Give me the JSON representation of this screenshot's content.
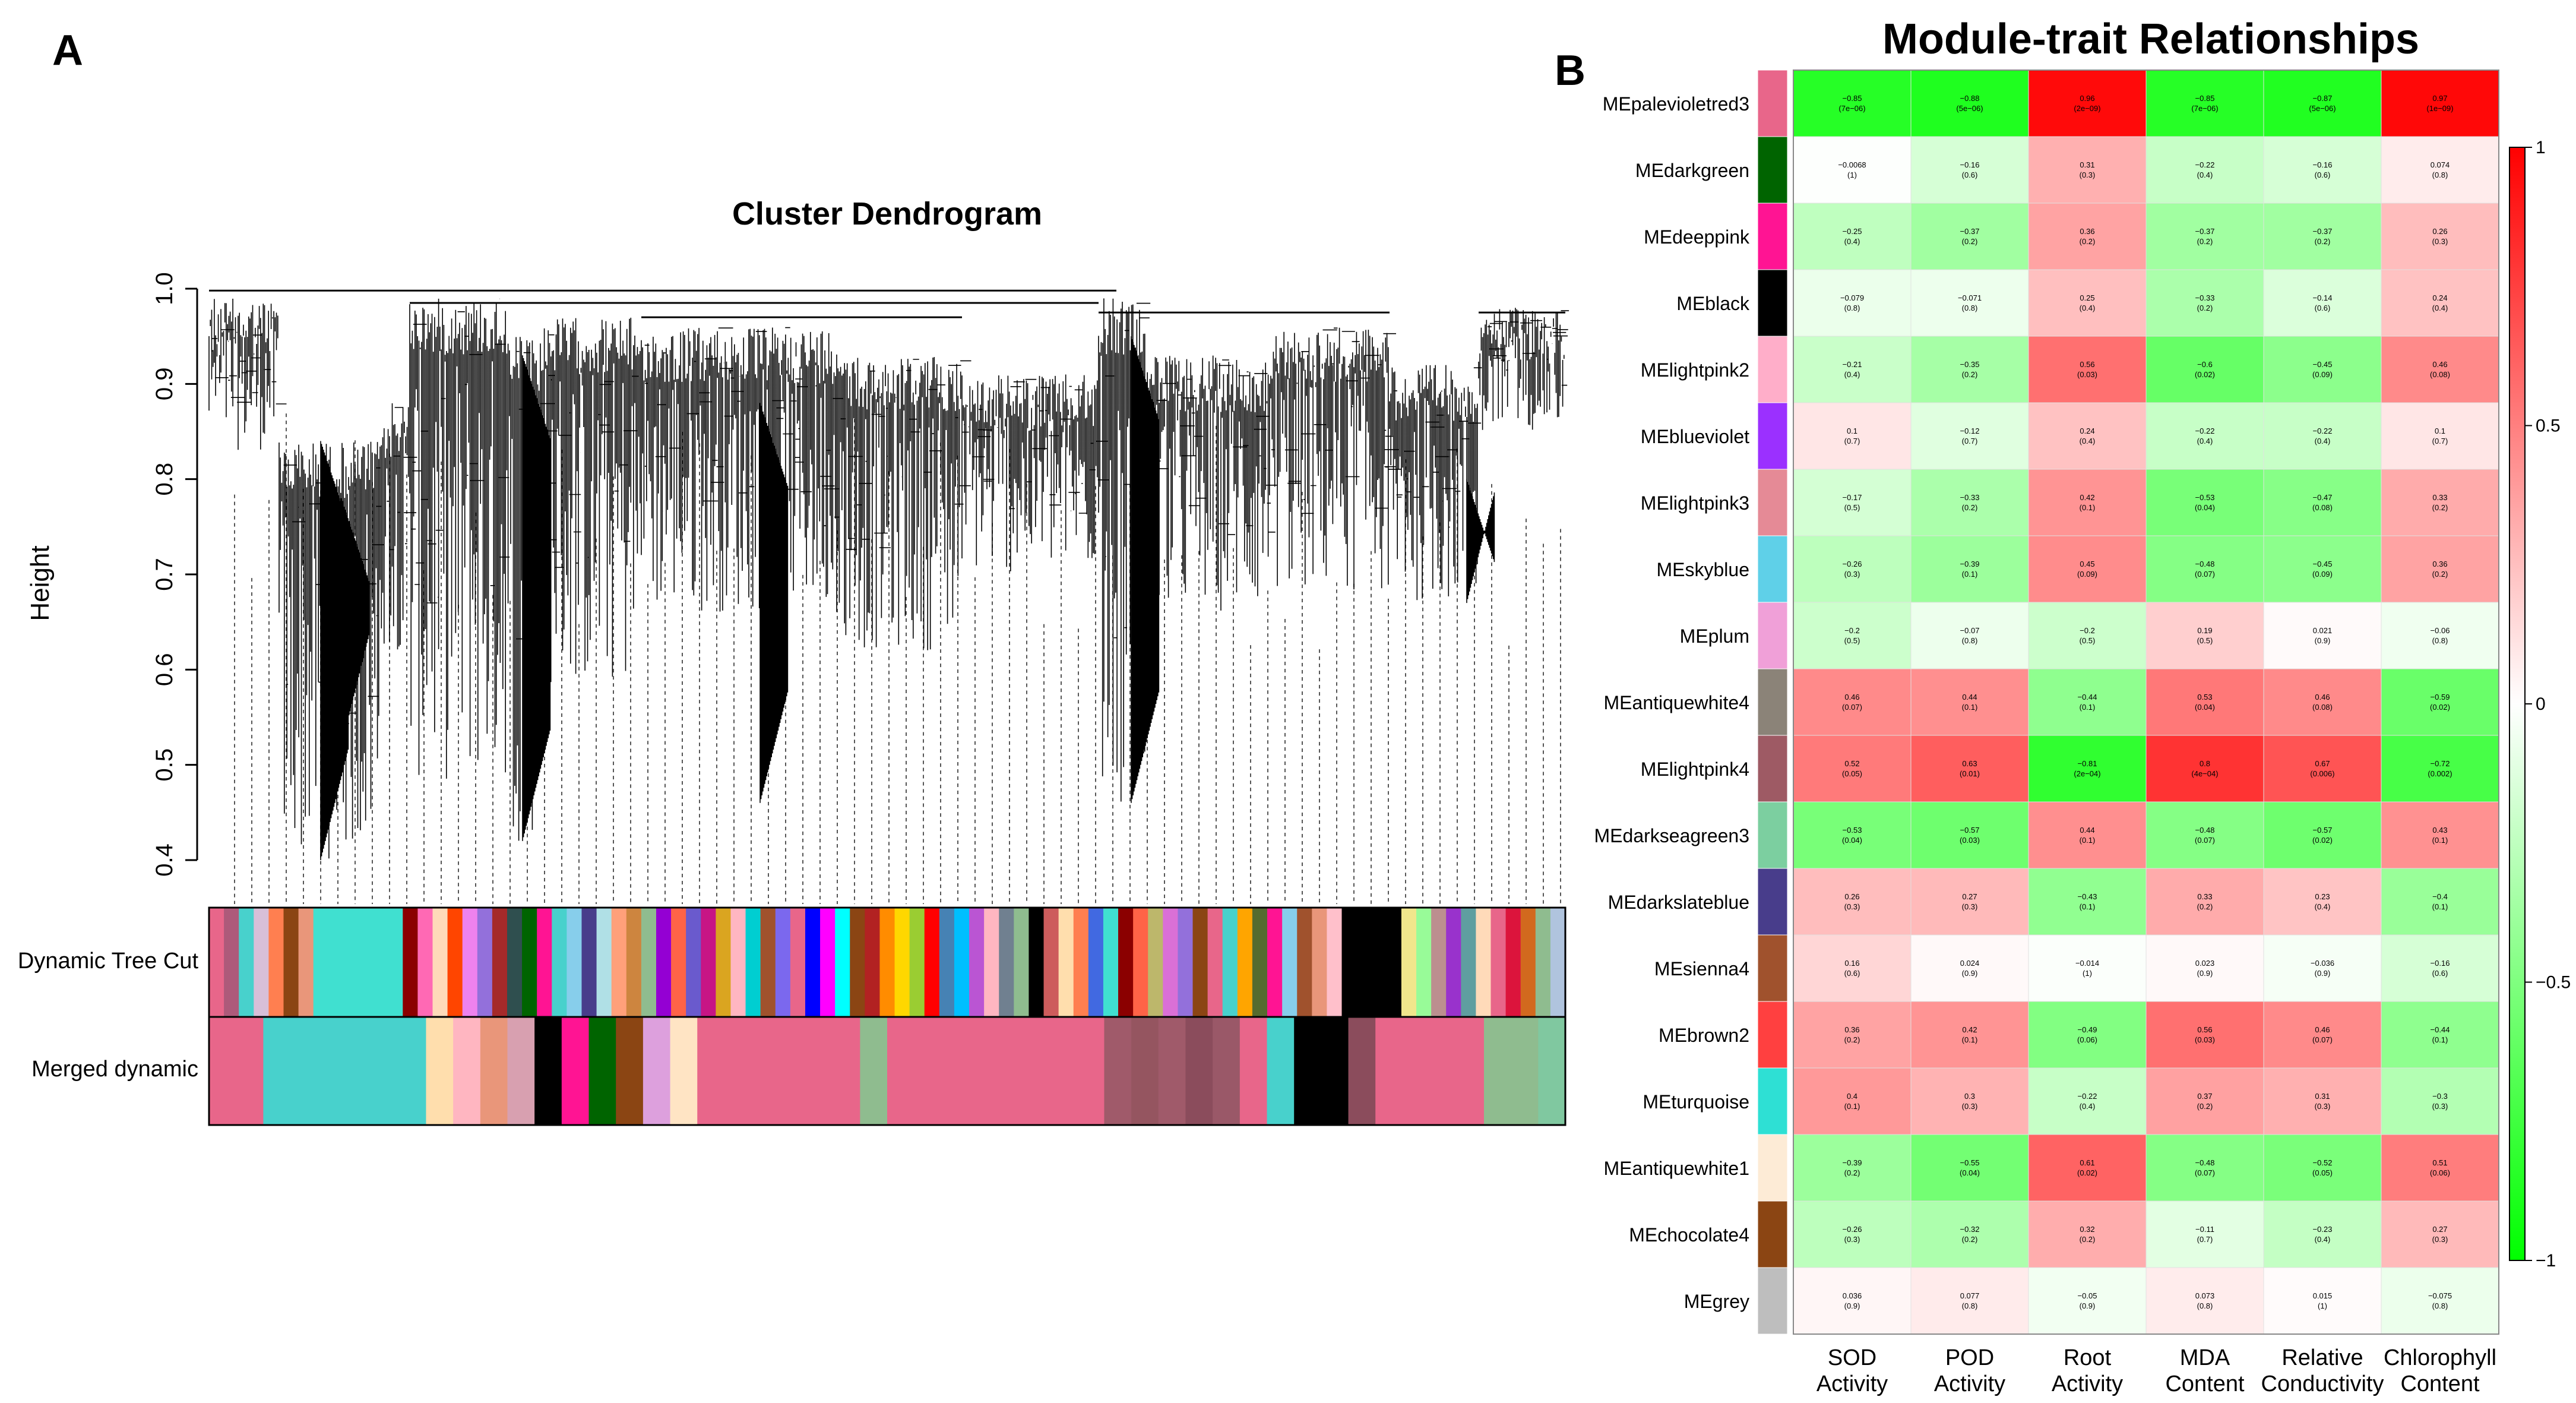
{
  "panel_a_letter": "A",
  "panel_b_letter": "B",
  "chart_data": [
    {
      "type": "dendrogram",
      "title": "Cluster Dendrogram",
      "ylabel": "Height",
      "xlabel": "",
      "ylim": [
        0.4,
        1.0
      ],
      "yticks": [
        0.4,
        0.5,
        0.6,
        0.7,
        0.8,
        0.9,
        1.0
      ],
      "ytick_labels": [
        "0.4",
        "0.5",
        "0.6",
        "0.7",
        "0.8",
        "0.9",
        "1.0"
      ],
      "color_rows": [
        {
          "label": "Dynamic Tree Cut"
        },
        {
          "label": "Merged dynamic"
        }
      ],
      "dynamic_tree_cut_colors": [
        "#e8668a",
        "#ad5a7a",
        "#48d1cc",
        "#d8bfd8",
        "#ff7f50",
        "#8b4513",
        "#e9967a",
        "#40e0d0",
        "#40e0d0",
        "#40e0d0",
        "#40e0d0",
        "#40e0d0",
        "#40e0d0",
        "#8b0000",
        "#ff69b4",
        "#ffdab9",
        "#ff4500",
        "#ee82ee",
        "#9370db",
        "#a52a2a",
        "#2f4f4f",
        "#006400",
        "#ff1493",
        "#48d1cc",
        "#87ceeb",
        "#483d8b",
        "#b0e0e6",
        "#ffa07a",
        "#cd853f",
        "#8fbc8f",
        "#9400d3",
        "#ff6347",
        "#6a5acd",
        "#c71585",
        "#daa520",
        "#ffb6c1",
        "#00ced1",
        "#a0522d",
        "#7b68ee",
        "#e8668a",
        "#0000ff",
        "#ff00ff",
        "#00ffff",
        "#8b4513",
        "#b22222",
        "#ff8c00",
        "#ffd700",
        "#9acd32",
        "#ff0000",
        "#4682b4",
        "#00bfff",
        "#ba55d3",
        "#ffb6c1",
        "#708090",
        "#8fbc8f",
        "#000000",
        "#cd5c5c",
        "#ffdead",
        "#ff7f50",
        "#4169e1",
        "#40e0d0",
        "#8b0000",
        "#ff6347",
        "#bdb76b",
        "#da70d6",
        "#9370db",
        "#8b4513",
        "#e8668a",
        "#48d1cc",
        "#ffa500",
        "#556b2f",
        "#ff1493",
        "#87ceeb",
        "#a0522d",
        "#e9967a",
        "#ffc0cb",
        "#000000",
        "#000000",
        "#000000",
        "#000000",
        "#f0e68c",
        "#98fb98",
        "#bc8f8f",
        "#9932cc",
        "#5f9ea0",
        "#ffdab9",
        "#e8668a",
        "#dc143c",
        "#d2691e",
        "#8fbc8f",
        "#b0c4de"
      ],
      "merged_dynamic_colors": [
        "#e8668a",
        "#e8668a",
        "#48d1cc",
        "#48d1cc",
        "#48d1cc",
        "#48d1cc",
        "#48d1cc",
        "#48d1cc",
        "#ffdead",
        "#ffb6c1",
        "#e9967a",
        "#d8a0b0",
        "#000000",
        "#ff1493",
        "#006400",
        "#8b4513",
        "#dda0dd",
        "#ffe4c4",
        "#e8668a",
        "#e8668a",
        "#e8668a",
        "#e8668a",
        "#e8668a",
        "#e8668a",
        "#8fbc8f",
        "#e8668a",
        "#e8668a",
        "#e8668a",
        "#e8668a",
        "#e8668a",
        "#e8668a",
        "#e8668a",
        "#e8668a",
        "#a05a6a",
        "#955560",
        "#a05a6a",
        "#8b4c5c",
        "#9a5868",
        "#e8668a",
        "#48d1cc",
        "#000000",
        "#000000",
        "#8b4c5c",
        "#e8668a",
        "#e8668a",
        "#e8668a",
        "#e8668a",
        "#8fbc8f",
        "#8fbc8f",
        "#80c8a0"
      ]
    },
    {
      "type": "heatmap",
      "title": "Module-trait Relationships",
      "xlabel": "",
      "ylabel": "",
      "columns": [
        "SOD\nActivity",
        "POD\nActivity",
        "Root\nActivity",
        "MDA\nContent",
        "Relative\nConductivity",
        "Chlorophyll\nContent"
      ],
      "rows": [
        "MEpalevioletred3",
        "MEdarkgreen",
        "MEdeeppink",
        "MEblack",
        "MElightpink2",
        "MEblueviolet",
        "MElightpink3",
        "MEskyblue",
        "MEplum",
        "MEantiquewhite4",
        "MElightpink4",
        "MEdarkseagreen3",
        "MEdarkslateblue",
        "MEsienna4",
        "MEbrown2",
        "MEturquoise",
        "MEantiquewhite1",
        "MEchocolate4",
        "MEgrey"
      ],
      "row_colors": [
        "#e8668a",
        "#006400",
        "#ff1493",
        "#000000",
        "#ffaec9",
        "#9b30ff",
        "#e58a96",
        "#5fd0e8",
        "#f0a0d8",
        "#8b8378",
        "#9e5a64",
        "#7ccfa0",
        "#483d8b",
        "#a0522d",
        "#ff4040",
        "#2ee0d4",
        "#fdebd6",
        "#8b4513",
        "#bebebe"
      ],
      "correlations": [
        [
          -0.85,
          -0.88,
          0.96,
          -0.85,
          -0.87,
          0.97
        ],
        [
          -0.0068,
          -0.16,
          0.31,
          -0.22,
          -0.16,
          0.074
        ],
        [
          -0.25,
          -0.37,
          0.36,
          -0.37,
          -0.37,
          0.26
        ],
        [
          -0.079,
          -0.071,
          0.25,
          -0.33,
          -0.14,
          0.24
        ],
        [
          -0.21,
          -0.35,
          0.56,
          -0.6,
          -0.45,
          0.46
        ],
        [
          0.1,
          -0.12,
          0.24,
          -0.22,
          -0.22,
          0.1
        ],
        [
          -0.17,
          -0.33,
          0.42,
          -0.53,
          -0.47,
          0.33
        ],
        [
          -0.26,
          -0.39,
          0.45,
          -0.48,
          -0.45,
          0.36
        ],
        [
          -0.2,
          -0.07,
          -0.2,
          0.19,
          0.021,
          -0.06
        ],
        [
          0.46,
          0.44,
          -0.44,
          0.53,
          0.46,
          -0.59
        ],
        [
          0.52,
          0.63,
          -0.81,
          0.8,
          0.67,
          -0.72
        ],
        [
          -0.53,
          -0.57,
          0.44,
          -0.48,
          -0.57,
          0.43
        ],
        [
          0.26,
          0.27,
          -0.43,
          0.33,
          0.23,
          -0.4
        ],
        [
          0.16,
          0.024,
          -0.014,
          0.023,
          -0.036,
          -0.16
        ],
        [
          0.36,
          0.42,
          -0.49,
          0.56,
          0.46,
          -0.44
        ],
        [
          0.4,
          0.3,
          -0.22,
          0.37,
          0.31,
          -0.3
        ],
        [
          -0.39,
          -0.55,
          0.61,
          -0.48,
          -0.52,
          0.51
        ],
        [
          -0.26,
          -0.32,
          0.32,
          -0.11,
          -0.23,
          0.27
        ],
        [
          0.036,
          0.077,
          -0.05,
          0.073,
          0.015,
          -0.075
        ]
      ],
      "correlation_labels": [
        [
          "−0.85",
          "−0.88",
          "0.96",
          "−0.85",
          "−0.87",
          "0.97"
        ],
        [
          "−0.0068",
          "−0.16",
          "0.31",
          "−0.22",
          "−0.16",
          "0.074"
        ],
        [
          "−0.25",
          "−0.37",
          "0.36",
          "−0.37",
          "−0.37",
          "0.26"
        ],
        [
          "−0.079",
          "−0.071",
          "0.25",
          "−0.33",
          "−0.14",
          "0.24"
        ],
        [
          "−0.21",
          "−0.35",
          "0.56",
          "−0.6",
          "−0.45",
          "0.46"
        ],
        [
          "0.1",
          "−0.12",
          "0.24",
          "−0.22",
          "−0.22",
          "0.1"
        ],
        [
          "−0.17",
          "−0.33",
          "0.42",
          "−0.53",
          "−0.47",
          "0.33"
        ],
        [
          "−0.26",
          "−0.39",
          "0.45",
          "−0.48",
          "−0.45",
          "0.36"
        ],
        [
          "−0.2",
          "−0.07",
          "−0.2",
          "0.19",
          "0.021",
          "−0.06"
        ],
        [
          "0.46",
          "0.44",
          "−0.44",
          "0.53",
          "0.46",
          "−0.59"
        ],
        [
          "0.52",
          "0.63",
          "−0.81",
          "0.8",
          "0.67",
          "−0.72"
        ],
        [
          "−0.53",
          "−0.57",
          "0.44",
          "−0.48",
          "−0.57",
          "0.43"
        ],
        [
          "0.26",
          "0.27",
          "−0.43",
          "0.33",
          "0.23",
          "−0.4"
        ],
        [
          "0.16",
          "0.024",
          "−0.014",
          "0.023",
          "−0.036",
          "−0.16"
        ],
        [
          "0.36",
          "0.42",
          "−0.49",
          "0.56",
          "0.46",
          "−0.44"
        ],
        [
          "0.4",
          "0.3",
          "−0.22",
          "0.37",
          "0.31",
          "−0.3"
        ],
        [
          "−0.39",
          "−0.55",
          "0.61",
          "−0.48",
          "−0.52",
          "0.51"
        ],
        [
          "−0.26",
          "−0.32",
          "0.32",
          "−0.11",
          "−0.23",
          "0.27"
        ],
        [
          "0.036",
          "0.077",
          "−0.05",
          "0.073",
          "0.015",
          "−0.075"
        ]
      ],
      "pvalues": [
        [
          "(7e−06)",
          "(5e−06)",
          "(2e−09)",
          "(7e−06)",
          "(5e−06)",
          "(1e−09)"
        ],
        [
          "(1)",
          "(0.6)",
          "(0.3)",
          "(0.4)",
          "(0.6)",
          "(0.8)"
        ],
        [
          "(0.4)",
          "(0.2)",
          "(0.2)",
          "(0.2)",
          "(0.2)",
          "(0.3)"
        ],
        [
          "(0.8)",
          "(0.8)",
          "(0.4)",
          "(0.2)",
          "(0.6)",
          "(0.4)"
        ],
        [
          "(0.4)",
          "(0.2)",
          "(0.03)",
          "(0.02)",
          "(0.09)",
          "(0.08)"
        ],
        [
          "(0.7)",
          "(0.7)",
          "(0.4)",
          "(0.4)",
          "(0.4)",
          "(0.7)"
        ],
        [
          "(0.5)",
          "(0.2)",
          "(0.1)",
          "(0.04)",
          "(0.08)",
          "(0.2)"
        ],
        [
          "(0.3)",
          "(0.1)",
          "(0.09)",
          "(0.07)",
          "(0.09)",
          "(0.2)"
        ],
        [
          "(0.5)",
          "(0.8)",
          "(0.5)",
          "(0.5)",
          "(0.9)",
          "(0.8)"
        ],
        [
          "(0.07)",
          "(0.1)",
          "(0.1)",
          "(0.04)",
          "(0.08)",
          "(0.02)"
        ],
        [
          "(0.05)",
          "(0.01)",
          "(2e−04)",
          "(4e−04)",
          "(0.006)",
          "(0.002)"
        ],
        [
          "(0.04)",
          "(0.03)",
          "(0.1)",
          "(0.07)",
          "(0.02)",
          "(0.1)"
        ],
        [
          "(0.3)",
          "(0.3)",
          "(0.1)",
          "(0.2)",
          "(0.4)",
          "(0.1)"
        ],
        [
          "(0.6)",
          "(0.9)",
          "(1)",
          "(0.9)",
          "(0.9)",
          "(0.6)"
        ],
        [
          "(0.2)",
          "(0.1)",
          "(0.06)",
          "(0.03)",
          "(0.07)",
          "(0.1)"
        ],
        [
          "(0.1)",
          "(0.3)",
          "(0.4)",
          "(0.2)",
          "(0.3)",
          "(0.3)"
        ],
        [
          "(0.2)",
          "(0.04)",
          "(0.02)",
          "(0.07)",
          "(0.05)",
          "(0.06)"
        ],
        [
          "(0.3)",
          "(0.2)",
          "(0.2)",
          "(0.7)",
          "(0.4)",
          "(0.3)"
        ],
        [
          "(0.9)",
          "(0.8)",
          "(0.9)",
          "(0.8)",
          "(1)",
          "(0.8)"
        ]
      ],
      "colorbar_range": [
        -1,
        1
      ],
      "colorbar_ticks": [
        1,
        0.5,
        0,
        -0.5,
        -1
      ],
      "colorbar_tick_labels": [
        "1",
        "0.5",
        "0",
        "−0.5",
        "−1"
      ],
      "colorbar_colors": {
        "low": "#00ff00",
        "mid": "#ffffff",
        "high": "#ff0000"
      }
    }
  ]
}
